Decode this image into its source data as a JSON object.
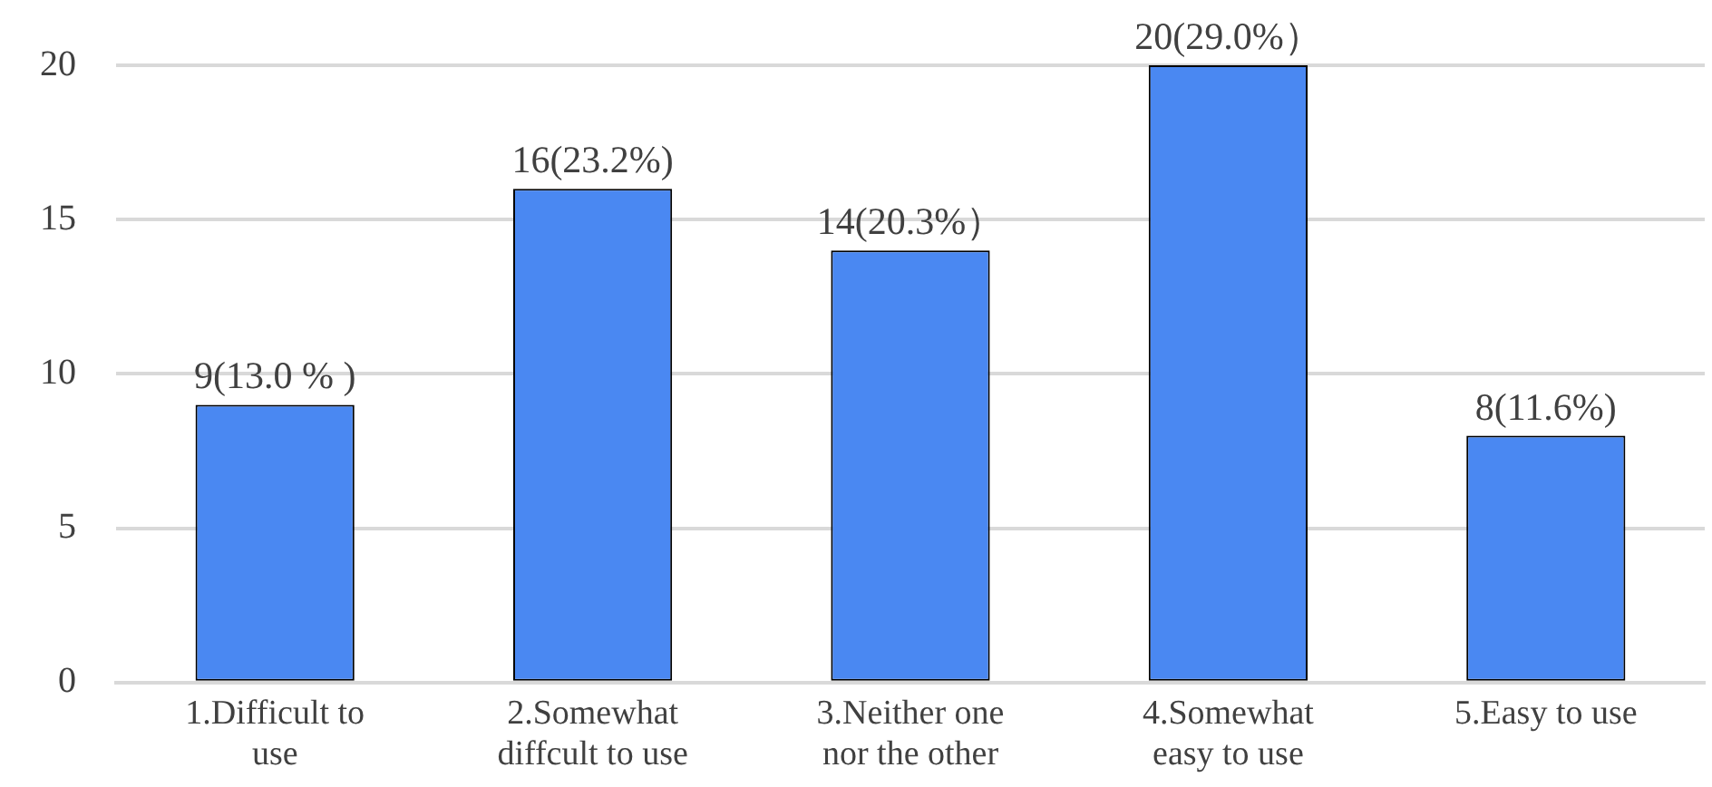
{
  "chart_data": {
    "type": "bar",
    "categories": [
      "1.Difficult to use",
      "2.Somewhat diffcult to use",
      "3.Neither one nor the other",
      "4.Somewhat easy to use",
      "5.Easy to use"
    ],
    "values": [
      9,
      16,
      14,
      20,
      8
    ],
    "value_labels": [
      "9(13.0 % )",
      "16(23.2%)",
      "14(20.3%）",
      "20(29.0%）",
      "8(11.6%)"
    ],
    "color": "#4a88f2",
    "ylim": [
      0,
      20
    ],
    "yticks": [
      0,
      5,
      10,
      15,
      20
    ],
    "grid": "y",
    "legend": false
  }
}
